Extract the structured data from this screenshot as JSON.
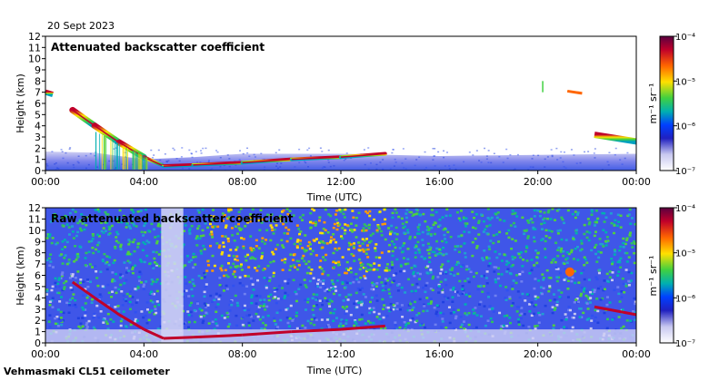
{
  "date_label": "20 Sept 2023",
  "footer_label": "Vehmasmaki CL51 ceilometer",
  "chart_data": [
    {
      "type": "heatmap",
      "title": "Attenuated backscatter coefficient",
      "xlabel": "Time (UTC)",
      "ylabel": "Height (km)",
      "x_ticks": [
        "00:00",
        "04:00",
        "08:00",
        "12:00",
        "16:00",
        "20:00",
        "00:00"
      ],
      "y_ticks": [
        "0",
        "1",
        "2",
        "3",
        "4",
        "5",
        "6",
        "7",
        "8",
        "9",
        "10",
        "11",
        "12"
      ],
      "xlim": [
        0,
        24
      ],
      "ylim": [
        0,
        12
      ],
      "colorbar": {
        "label": "m⁻¹ sr⁻¹",
        "scale": "log",
        "ticks": [
          "10⁻⁴",
          "10⁻⁵",
          "10⁻⁶",
          "10⁻⁷"
        ],
        "colors": [
          "#5a0040",
          "#c0002a",
          "#ff6600",
          "#ffe000",
          "#40d040",
          "#00b0b0",
          "#0040ff",
          "#2020c0",
          "#c8c8f0",
          "#ffffff"
        ]
      },
      "features": {
        "boundary_layer": [
          [
            0,
            1.7
          ],
          [
            2,
            1.6
          ],
          [
            4,
            1.0
          ],
          [
            6,
            1.2
          ],
          [
            8,
            1.5
          ],
          [
            12,
            1.5
          ],
          [
            16,
            1.3
          ],
          [
            20,
            1.4
          ],
          [
            24,
            1.5
          ]
        ],
        "cloud_base": [
          [
            1.1,
            5.4
          ],
          [
            2,
            4.0
          ],
          [
            3,
            2.5
          ],
          [
            4,
            1.2
          ],
          [
            4.8,
            0.4
          ],
          [
            6,
            0.5
          ],
          [
            8,
            0.7
          ],
          [
            10,
            1.0
          ],
          [
            12,
            1.2
          ],
          [
            13.8,
            1.5
          ]
        ],
        "upper_cloud": [
          [
            0,
            7.0
          ],
          [
            0.3,
            6.8
          ],
          [
            22.3,
            3.2
          ],
          [
            24,
            2.6
          ]
        ]
      }
    },
    {
      "type": "heatmap",
      "title": "Raw attenuated backscatter coefficient",
      "xlabel": "Time (UTC)",
      "ylabel": "Height (km)",
      "x_ticks": [
        "00:00",
        "04:00",
        "08:00",
        "12:00",
        "16:00",
        "20:00",
        "00:00"
      ],
      "y_ticks": [
        "0",
        "1",
        "2",
        "3",
        "4",
        "5",
        "6",
        "7",
        "8",
        "9",
        "10",
        "11",
        "12"
      ],
      "xlim": [
        0,
        24
      ],
      "ylim": [
        0,
        12
      ],
      "colorbar": {
        "label": "m⁻¹ sr⁻¹",
        "scale": "log",
        "ticks": [
          "10⁻⁴",
          "10⁻⁵",
          "10⁻⁶",
          "10⁻⁷"
        ],
        "colors": [
          "#5a0040",
          "#c0002a",
          "#ff6600",
          "#ffe000",
          "#40d040",
          "#00b0b0",
          "#0040ff",
          "#2020c0",
          "#c8c8f0",
          "#ffffff"
        ]
      }
    }
  ]
}
